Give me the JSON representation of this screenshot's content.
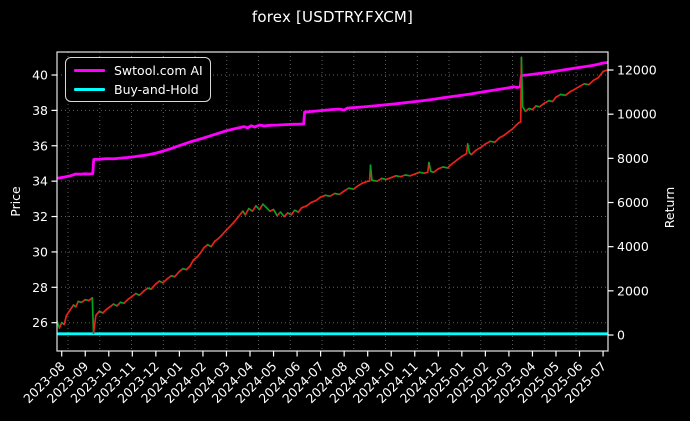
{
  "window": {
    "title": "forex [USDTRY.FXCM]"
  },
  "chart_data": {
    "type": "line",
    "title": "forex [USDTRY.FXCM]",
    "background_color": "#000000",
    "text_color": "#ffffff",
    "grid": {
      "on": true,
      "color": "#5f5f5f",
      "style": "dotted"
    },
    "legend": {
      "position": "upper-left",
      "entries": [
        {
          "label": "Swtool.com AI",
          "color": "#ff00ff"
        },
        {
          "label": "Buy-and-Hold",
          "color": "#00ffff"
        }
      ]
    },
    "x_axis": {
      "tick_labels": [
        "2023-08",
        "2023-09",
        "2023-10",
        "2023-11",
        "2023-12",
        "2024-01",
        "2024-02",
        "2024-03",
        "2024-04",
        "2024-05",
        "2024-06",
        "2024-07",
        "2024-08",
        "2024-09",
        "2024-10",
        "2024-11",
        "2024-12",
        "2025-01",
        "2025-02",
        "2025-03",
        "2025-04",
        "2025-05",
        "2025-06",
        "2025-07"
      ],
      "label_rotation_deg": 45,
      "range_months": [
        -0.2,
        23.21
      ]
    },
    "left_axis": {
      "label": "Price",
      "ticks": [
        26,
        28,
        30,
        32,
        34,
        36,
        38,
        40
      ],
      "range": [
        24.4,
        41.3
      ]
    },
    "right_axis": {
      "label": "Return",
      "ticks": [
        0,
        2000,
        4000,
        6000,
        8000,
        10000,
        12000
      ],
      "range": [
        -724,
        12816
      ]
    },
    "series": [
      {
        "name": "Buy-and-Hold",
        "axis": "right",
        "color": "#00ffff",
        "width": 2.8,
        "points": [
          [
            -0.2,
            55
          ],
          [
            23.21,
            55
          ]
        ]
      },
      {
        "name": "Swtool.com AI",
        "axis": "right",
        "color": "#ff00ff",
        "width": 2.8,
        "points": [
          [
            -0.2,
            7100
          ],
          [
            0.1,
            7150
          ],
          [
            0.4,
            7220
          ],
          [
            0.6,
            7290
          ],
          [
            0.8,
            7280
          ],
          [
            1.0,
            7300
          ],
          [
            1.15,
            7290
          ],
          [
            1.32,
            7310
          ],
          [
            1.36,
            7950
          ],
          [
            1.6,
            7960
          ],
          [
            1.9,
            7990
          ],
          [
            2.2,
            7980
          ],
          [
            2.5,
            8010
          ],
          [
            2.8,
            8040
          ],
          [
            3.1,
            8080
          ],
          [
            3.4,
            8120
          ],
          [
            3.7,
            8170
          ],
          [
            4.0,
            8240
          ],
          [
            4.3,
            8330
          ],
          [
            4.6,
            8430
          ],
          [
            4.9,
            8540
          ],
          [
            5.2,
            8650
          ],
          [
            5.5,
            8760
          ],
          [
            5.8,
            8850
          ],
          [
            6.1,
            8950
          ],
          [
            6.4,
            9050
          ],
          [
            6.7,
            9150
          ],
          [
            7.0,
            9250
          ],
          [
            7.3,
            9330
          ],
          [
            7.6,
            9400
          ],
          [
            7.75,
            9440
          ],
          [
            7.9,
            9380
          ],
          [
            8.05,
            9480
          ],
          [
            8.2,
            9420
          ],
          [
            8.4,
            9510
          ],
          [
            8.6,
            9470
          ],
          [
            8.9,
            9500
          ],
          [
            9.2,
            9510
          ],
          [
            9.5,
            9530
          ],
          [
            9.8,
            9540
          ],
          [
            10.1,
            9550
          ],
          [
            10.28,
            9560
          ],
          [
            10.32,
            10100
          ],
          [
            10.6,
            10120
          ],
          [
            10.9,
            10150
          ],
          [
            11.2,
            10180
          ],
          [
            11.5,
            10210
          ],
          [
            11.8,
            10230
          ],
          [
            12.0,
            10190
          ],
          [
            12.15,
            10280
          ],
          [
            12.4,
            10300
          ],
          [
            12.7,
            10320
          ],
          [
            13.0,
            10350
          ],
          [
            13.4,
            10390
          ],
          [
            13.8,
            10430
          ],
          [
            14.2,
            10470
          ],
          [
            14.6,
            10520
          ],
          [
            15.0,
            10570
          ],
          [
            15.4,
            10620
          ],
          [
            15.8,
            10680
          ],
          [
            16.2,
            10740
          ],
          [
            16.6,
            10800
          ],
          [
            17.0,
            10860
          ],
          [
            17.4,
            10920
          ],
          [
            17.8,
            10990
          ],
          [
            18.2,
            11060
          ],
          [
            18.6,
            11130
          ],
          [
            19.0,
            11200
          ],
          [
            19.2,
            11240
          ],
          [
            19.35,
            11210
          ],
          [
            19.48,
            11250
          ],
          [
            19.53,
            11750
          ],
          [
            19.8,
            11780
          ],
          [
            20.1,
            11820
          ],
          [
            20.4,
            11860
          ],
          [
            20.7,
            11900
          ],
          [
            21.0,
            11950
          ],
          [
            21.3,
            12000
          ],
          [
            21.6,
            12050
          ],
          [
            21.9,
            12100
          ],
          [
            22.2,
            12150
          ],
          [
            22.5,
            12200
          ],
          [
            22.75,
            12250
          ],
          [
            23.0,
            12320
          ],
          [
            23.21,
            12340
          ]
        ]
      },
      {
        "name": "USDTRY price",
        "axis": "left",
        "type": "updown",
        "up_color": "#e8231a",
        "down_color": "#00a524",
        "width": 1.7,
        "points": [
          [
            -0.2,
            26.1
          ],
          [
            -0.1,
            25.7
          ],
          [
            0.0,
            26.0
          ],
          [
            0.1,
            25.9
          ],
          [
            0.2,
            26.4
          ],
          [
            0.35,
            26.7
          ],
          [
            0.5,
            27.0
          ],
          [
            0.6,
            26.9
          ],
          [
            0.7,
            27.2
          ],
          [
            0.85,
            27.15
          ],
          [
            1.0,
            27.3
          ],
          [
            1.15,
            27.25
          ],
          [
            1.3,
            27.4
          ],
          [
            1.35,
            25.4
          ],
          [
            1.45,
            26.4
          ],
          [
            1.6,
            26.65
          ],
          [
            1.75,
            26.55
          ],
          [
            1.9,
            26.75
          ],
          [
            2.05,
            26.9
          ],
          [
            2.2,
            27.05
          ],
          [
            2.35,
            26.95
          ],
          [
            2.5,
            27.15
          ],
          [
            2.65,
            27.1
          ],
          [
            2.8,
            27.3
          ],
          [
            3.0,
            27.5
          ],
          [
            3.15,
            27.65
          ],
          [
            3.3,
            27.55
          ],
          [
            3.5,
            27.8
          ],
          [
            3.65,
            27.95
          ],
          [
            3.8,
            27.9
          ],
          [
            4.0,
            28.2
          ],
          [
            4.15,
            28.35
          ],
          [
            4.3,
            28.25
          ],
          [
            4.5,
            28.5
          ],
          [
            4.65,
            28.65
          ],
          [
            4.8,
            28.6
          ],
          [
            5.0,
            28.9
          ],
          [
            5.15,
            29.05
          ],
          [
            5.3,
            29.0
          ],
          [
            5.45,
            29.2
          ],
          [
            5.6,
            29.55
          ],
          [
            5.75,
            29.7
          ],
          [
            5.9,
            29.95
          ],
          [
            6.05,
            30.25
          ],
          [
            6.2,
            30.4
          ],
          [
            6.35,
            30.3
          ],
          [
            6.5,
            30.6
          ],
          [
            6.65,
            30.75
          ],
          [
            6.8,
            30.95
          ],
          [
            7.0,
            31.25
          ],
          [
            7.15,
            31.45
          ],
          [
            7.3,
            31.65
          ],
          [
            7.45,
            31.9
          ],
          [
            7.6,
            32.15
          ],
          [
            7.7,
            32.3
          ],
          [
            7.8,
            32.1
          ],
          [
            7.95,
            32.45
          ],
          [
            8.1,
            32.3
          ],
          [
            8.25,
            32.6
          ],
          [
            8.4,
            32.4
          ],
          [
            8.55,
            32.7
          ],
          [
            8.7,
            32.5
          ],
          [
            8.85,
            32.3
          ],
          [
            9.0,
            32.4
          ],
          [
            9.15,
            32.05
          ],
          [
            9.3,
            32.25
          ],
          [
            9.45,
            32.0
          ],
          [
            9.6,
            32.2
          ],
          [
            9.75,
            32.1
          ],
          [
            9.9,
            32.35
          ],
          [
            10.05,
            32.25
          ],
          [
            10.2,
            32.5
          ],
          [
            10.4,
            32.6
          ],
          [
            10.6,
            32.8
          ],
          [
            10.8,
            32.9
          ],
          [
            11.0,
            33.1
          ],
          [
            11.2,
            33.2
          ],
          [
            11.4,
            33.15
          ],
          [
            11.6,
            33.3
          ],
          [
            11.8,
            33.25
          ],
          [
            12.0,
            33.45
          ],
          [
            12.2,
            33.6
          ],
          [
            12.4,
            33.55
          ],
          [
            12.6,
            33.75
          ],
          [
            12.8,
            33.9
          ],
          [
            13.0,
            34.0
          ],
          [
            13.08,
            34.0
          ],
          [
            13.12,
            34.9
          ],
          [
            13.18,
            34.05
          ],
          [
            13.4,
            34.0
          ],
          [
            13.6,
            34.15
          ],
          [
            13.8,
            34.1
          ],
          [
            14.0,
            34.2
          ],
          [
            14.2,
            34.3
          ],
          [
            14.4,
            34.25
          ],
          [
            14.6,
            34.35
          ],
          [
            14.8,
            34.3
          ],
          [
            15.0,
            34.4
          ],
          [
            15.2,
            34.5
          ],
          [
            15.4,
            34.45
          ],
          [
            15.55,
            34.5
          ],
          [
            15.6,
            35.05
          ],
          [
            15.68,
            34.55
          ],
          [
            15.8,
            34.5
          ],
          [
            16.0,
            34.7
          ],
          [
            16.2,
            34.8
          ],
          [
            16.4,
            34.75
          ],
          [
            16.6,
            35.0
          ],
          [
            16.8,
            35.2
          ],
          [
            17.0,
            35.4
          ],
          [
            17.2,
            35.55
          ],
          [
            17.25,
            36.1
          ],
          [
            17.32,
            35.6
          ],
          [
            17.4,
            35.5
          ],
          [
            17.6,
            35.75
          ],
          [
            17.8,
            35.9
          ],
          [
            18.0,
            36.1
          ],
          [
            18.2,
            36.25
          ],
          [
            18.4,
            36.2
          ],
          [
            18.6,
            36.45
          ],
          [
            18.8,
            36.6
          ],
          [
            19.0,
            36.8
          ],
          [
            19.15,
            36.95
          ],
          [
            19.3,
            37.15
          ],
          [
            19.42,
            37.3
          ],
          [
            19.5,
            37.35
          ],
          [
            19.53,
            41.0
          ],
          [
            19.58,
            38.2
          ],
          [
            19.7,
            37.95
          ],
          [
            19.85,
            38.1
          ],
          [
            20.0,
            38.05
          ],
          [
            20.15,
            38.25
          ],
          [
            20.3,
            38.2
          ],
          [
            20.5,
            38.4
          ],
          [
            20.7,
            38.55
          ],
          [
            20.85,
            38.5
          ],
          [
            21.0,
            38.75
          ],
          [
            21.2,
            38.9
          ],
          [
            21.4,
            38.85
          ],
          [
            21.6,
            39.05
          ],
          [
            21.8,
            39.2
          ],
          [
            22.0,
            39.35
          ],
          [
            22.2,
            39.5
          ],
          [
            22.4,
            39.45
          ],
          [
            22.6,
            39.7
          ],
          [
            22.8,
            39.85
          ],
          [
            23.0,
            40.2
          ],
          [
            23.21,
            40.3
          ]
        ]
      }
    ]
  }
}
